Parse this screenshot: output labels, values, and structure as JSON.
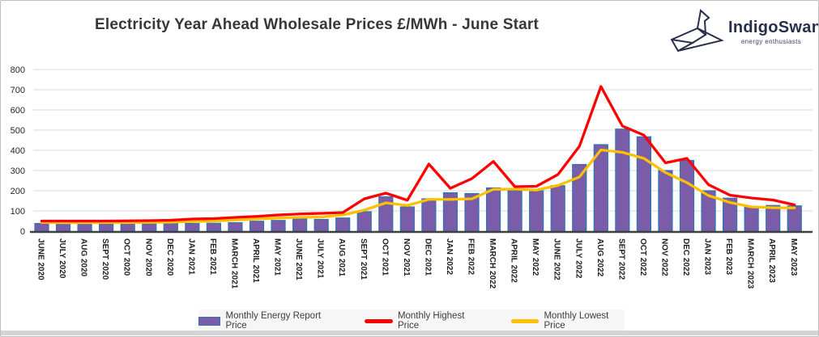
{
  "title": "Electricity Year Ahead Wholesale Prices £/MWh - June Start",
  "logo": {
    "name": "IndigoSwan",
    "tagline": "energy enthusiasts",
    "color": "#272f4d"
  },
  "legend": {
    "bar_label": "Monthly Energy Report Price",
    "highest_label": "Monthly Highest Price",
    "lowest_label": "Monthly Lowest Price"
  },
  "colors": {
    "bar_fill": "#7a5ca8",
    "bar_border": "#2e75b6",
    "highest_line": "#fe0000",
    "lowest_line": "#ffc000",
    "gridline": "#d9d9d9",
    "axis": "#3f3f3f"
  },
  "chart_data": {
    "type": "bar",
    "title": "Electricity Year Ahead Wholesale Prices £/MWh - June Start",
    "xlabel": "",
    "ylabel": "",
    "ylim": [
      0,
      800
    ],
    "yticks": [
      0,
      100,
      200,
      300,
      400,
      500,
      600,
      700,
      800
    ],
    "grid": true,
    "legend_position": "bottom",
    "categories": [
      "JUNE 2020",
      "JULY 2020",
      "AUG 2020",
      "SEPT 2020",
      "OCT 2020",
      "NOV 2020",
      "DEC 2020",
      "JAN 2021",
      "FEB 2021",
      "MARCH 2021",
      "APRIL 2021",
      "MAY 2021",
      "JUNE 2021",
      "JULY 2021",
      "AUG 2021",
      "SEPT 2021",
      "OCT 2021",
      "NOV 2021",
      "DEC 2021",
      "JAN 2022",
      "FEB 2022",
      "MARCH 2022",
      "APRIL 2022",
      "MAY 2022",
      "JUNE 2022",
      "JULY 2022",
      "AUG 2022",
      "SEPT 2022",
      "OCT 2022",
      "NOV 2022",
      "DEC 2022",
      "JAN 2023",
      "FEB 2023",
      "MARCH 2023",
      "APRIL 2023",
      "MAY 2023"
    ],
    "series": [
      {
        "name": "Monthly Energy Report Price",
        "type": "bar",
        "values": [
          38,
          33,
          33,
          34,
          35,
          36,
          38,
          38,
          39,
          42,
          49,
          53,
          60,
          58,
          65,
          96,
          170,
          120,
          160,
          190,
          186,
          214,
          201,
          200,
          225,
          330,
          428,
          505,
          467,
          300,
          350,
          200,
          163,
          122,
          127,
          125
        ]
      },
      {
        "name": "Monthly Highest Price",
        "type": "line",
        "values": [
          50,
          50,
          50,
          50,
          51,
          52,
          54,
          60,
          62,
          68,
          73,
          80,
          85,
          88,
          92,
          160,
          188,
          153,
          332,
          212,
          260,
          345,
          220,
          222,
          280,
          420,
          716,
          520,
          475,
          338,
          360,
          230,
          178,
          164,
          154,
          130
        ]
      },
      {
        "name": "Monthly Lowest Price",
        "type": "line",
        "values": [
          43,
          42,
          42,
          42,
          42,
          43,
          44,
          48,
          50,
          55,
          60,
          65,
          68,
          70,
          80,
          104,
          140,
          127,
          157,
          157,
          160,
          207,
          208,
          203,
          226,
          268,
          402,
          390,
          360,
          290,
          240,
          176,
          142,
          120,
          116,
          115
        ]
      }
    ]
  }
}
